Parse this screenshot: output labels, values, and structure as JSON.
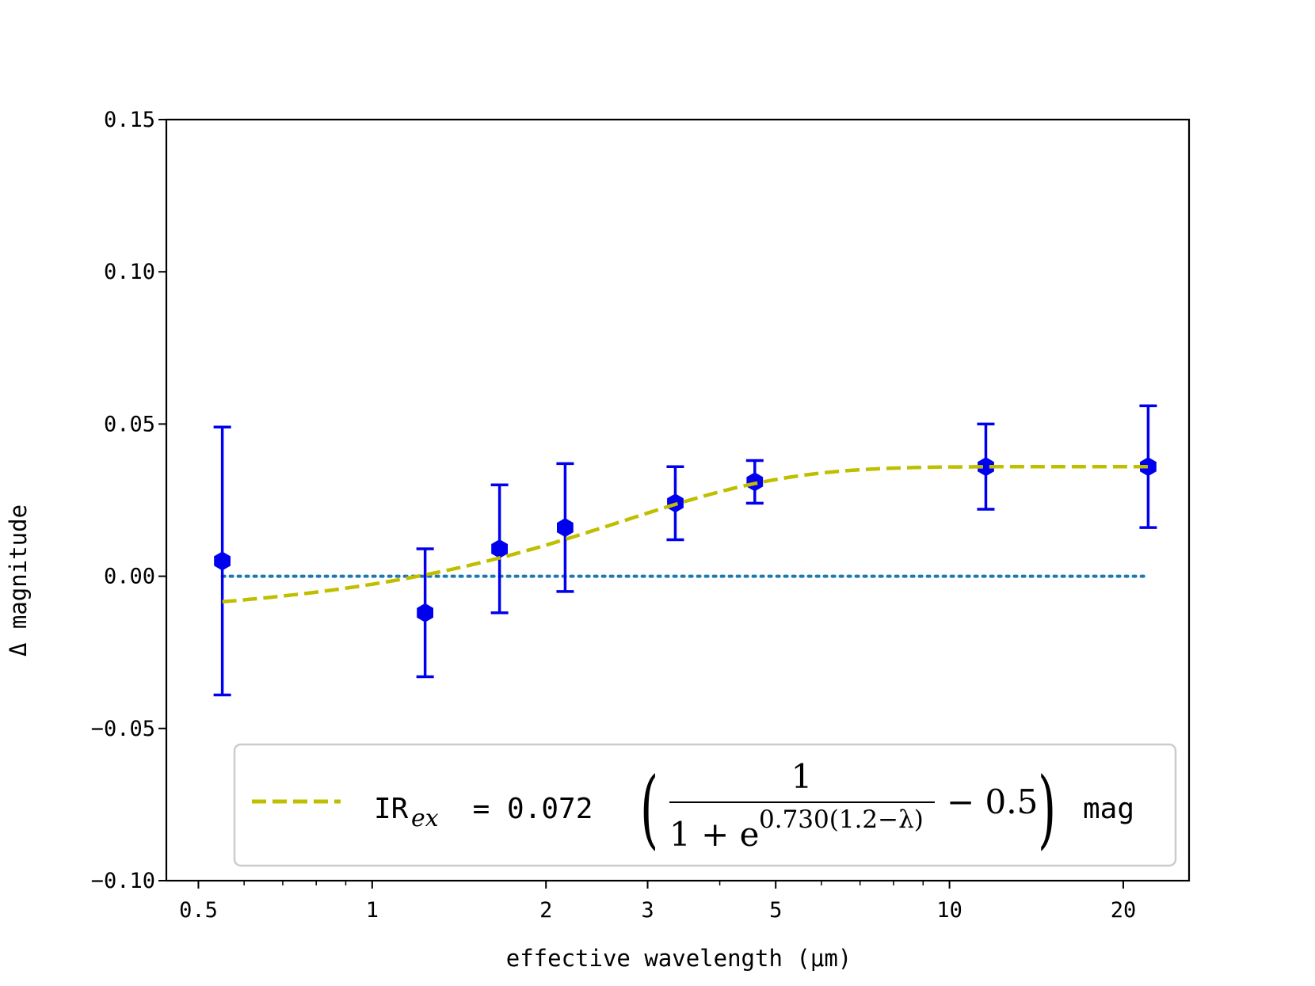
{
  "chart_data": {
    "type": "scatter",
    "title": "",
    "xlabel": "effective wavelength (μm)",
    "ylabel": "Δ magnitude",
    "xscale": "log",
    "xlim": [
      0.44,
      26
    ],
    "ylim": [
      -0.1,
      0.15
    ],
    "x_ticks": [
      0.5,
      1,
      2,
      3,
      5,
      10,
      20
    ],
    "x_tick_labels": [
      "0.5",
      "1",
      "2",
      "3",
      "5",
      "10",
      "20"
    ],
    "y_ticks": [
      0.15,
      0.1,
      0.05,
      0.0,
      -0.05,
      -0.1
    ],
    "y_tick_labels": [
      "0.15",
      "0.10",
      "0.05",
      "0.00",
      "−0.05",
      "−0.10"
    ],
    "series": [
      {
        "name": "observations",
        "kind": "errorbar",
        "color": "#0000ee",
        "marker": "hexagon",
        "points": [
          {
            "x": 0.55,
            "y": 0.005,
            "err": 0.044
          },
          {
            "x": 1.235,
            "y": -0.012,
            "err": 0.021
          },
          {
            "x": 1.662,
            "y": 0.009,
            "err": 0.021
          },
          {
            "x": 2.159,
            "y": 0.016,
            "err": 0.021
          },
          {
            "x": 3.35,
            "y": 0.024,
            "err": 0.012
          },
          {
            "x": 4.6,
            "y": 0.031,
            "err": 0.007
          },
          {
            "x": 11.56,
            "y": 0.036,
            "err": 0.014
          },
          {
            "x": 22.09,
            "y": 0.036,
            "err": 0.02
          }
        ]
      },
      {
        "name": "zero line",
        "kind": "reference",
        "style": "dotted",
        "color": "#1f77b4",
        "y": 0.0,
        "x_range": [
          0.55,
          22.09
        ]
      },
      {
        "name": "IR excess fit",
        "kind": "function",
        "style": "dashed",
        "color": "#bfbf00",
        "amplitude": 0.072,
        "k": 0.73,
        "lambda0": 1.2,
        "offset": 0.5,
        "x_range": [
          0.55,
          22.09
        ]
      }
    ],
    "legend": {
      "position": "bottom-right",
      "label_prefix": "IR",
      "label_sub": "ex",
      "label_equals": " = 0.072 ",
      "paren_open": "(",
      "paren_close": ")",
      "numerator": "1",
      "denominator_base": "1 + e",
      "exponent": "0.730(1.2−λ)",
      "minus_term": "− 0.5",
      "unit": "mag"
    }
  }
}
